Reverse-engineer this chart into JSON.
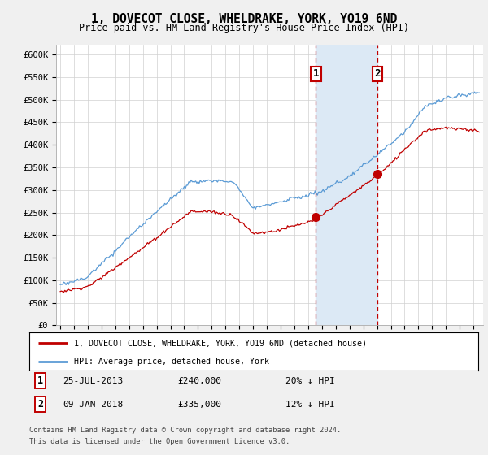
{
  "title": "1, DOVECOT CLOSE, WHELDRAKE, YORK, YO19 6ND",
  "subtitle": "Price paid vs. HM Land Registry's House Price Index (HPI)",
  "ylim": [
    0,
    620000
  ],
  "yticks": [
    0,
    50000,
    100000,
    150000,
    200000,
    250000,
    300000,
    350000,
    400000,
    450000,
    500000,
    550000,
    600000
  ],
  "ytick_labels": [
    "£0",
    "£50K",
    "£100K",
    "£150K",
    "£200K",
    "£250K",
    "£300K",
    "£350K",
    "£400K",
    "£450K",
    "£500K",
    "£550K",
    "£600K"
  ],
  "hpi_color": "#5b9bd5",
  "price_color": "#c00000",
  "marker1_date": 2013.56,
  "marker1_price": 240000,
  "marker1_label": "1",
  "marker2_date": 2018.03,
  "marker2_price": 335000,
  "marker2_label": "2",
  "shade_color": "#dce9f5",
  "legend_line1": "1, DOVECOT CLOSE, WHELDRAKE, YORK, YO19 6ND (detached house)",
  "legend_line2": "HPI: Average price, detached house, York",
  "ann1_date": "25-JUL-2013",
  "ann1_price": "£240,000",
  "ann1_hpi": "20% ↓ HPI",
  "ann2_date": "09-JAN-2018",
  "ann2_price": "£335,000",
  "ann2_hpi": "12% ↓ HPI",
  "footnote1": "Contains HM Land Registry data © Crown copyright and database right 2024.",
  "footnote2": "This data is licensed under the Open Government Licence v3.0.",
  "background_color": "#f0f0f0",
  "plot_bg_color": "#ffffff",
  "grid_color": "#d0d0d0"
}
